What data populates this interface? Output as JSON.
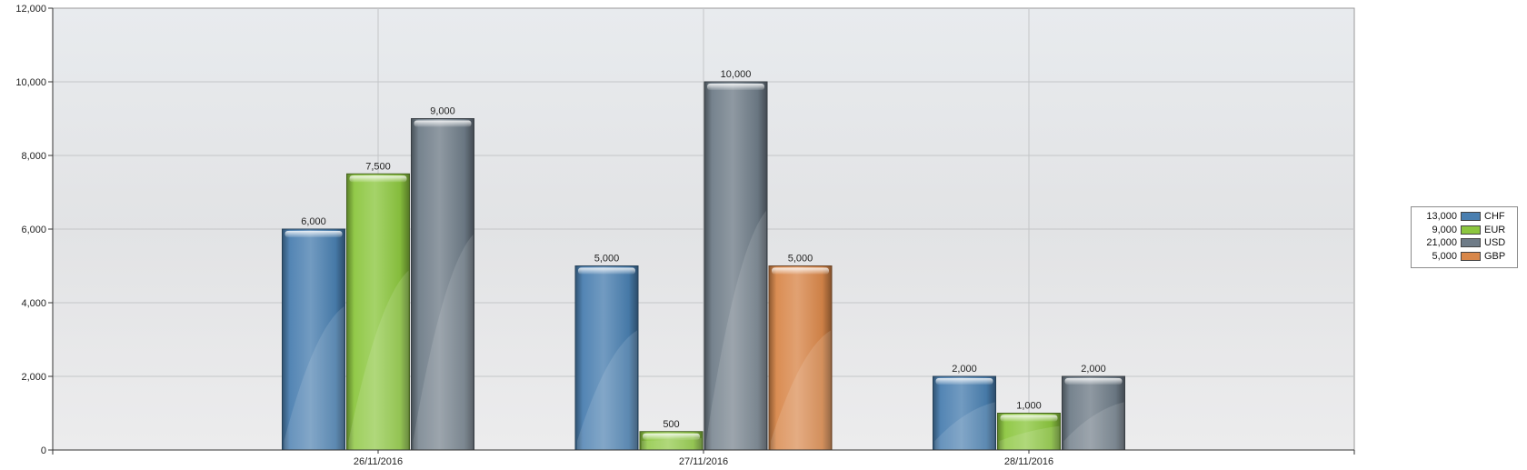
{
  "chart_data": {
    "type": "bar",
    "title": "",
    "xlabel": "",
    "ylabel": "",
    "categories": [
      "26/11/2016",
      "27/11/2016",
      "28/11/2016"
    ],
    "series": [
      {
        "name": "CHF",
        "total": "13,000",
        "color": "#4a7fb0",
        "values": [
          6000,
          5000,
          2000
        ]
      },
      {
        "name": "EUR",
        "total": "9,000",
        "color": "#8cc63f",
        "values": [
          7500,
          500,
          1000
        ]
      },
      {
        "name": "USD",
        "total": "21,000",
        "color": "#6f7c88",
        "values": [
          9000,
          10000,
          2000
        ]
      },
      {
        "name": "GBP",
        "total": "5,000",
        "color": "#d8874a",
        "values": [
          null,
          5000,
          null
        ]
      }
    ],
    "ylim": [
      0,
      12000
    ],
    "yticks": [
      0,
      2000,
      4000,
      6000,
      8000,
      10000,
      12000
    ],
    "ytick_labels": [
      "0",
      "2,000",
      "4,000",
      "6,000",
      "8,000",
      "10,000",
      "12,000"
    ],
    "data_labels": [
      [
        "6,000",
        "5,000",
        "2,000"
      ],
      [
        "7,500",
        "500",
        "1,000"
      ],
      [
        "9,000",
        "10,000",
        "2,000"
      ],
      [
        null,
        "5,000",
        null
      ]
    ],
    "grid": true,
    "legend": "right"
  }
}
